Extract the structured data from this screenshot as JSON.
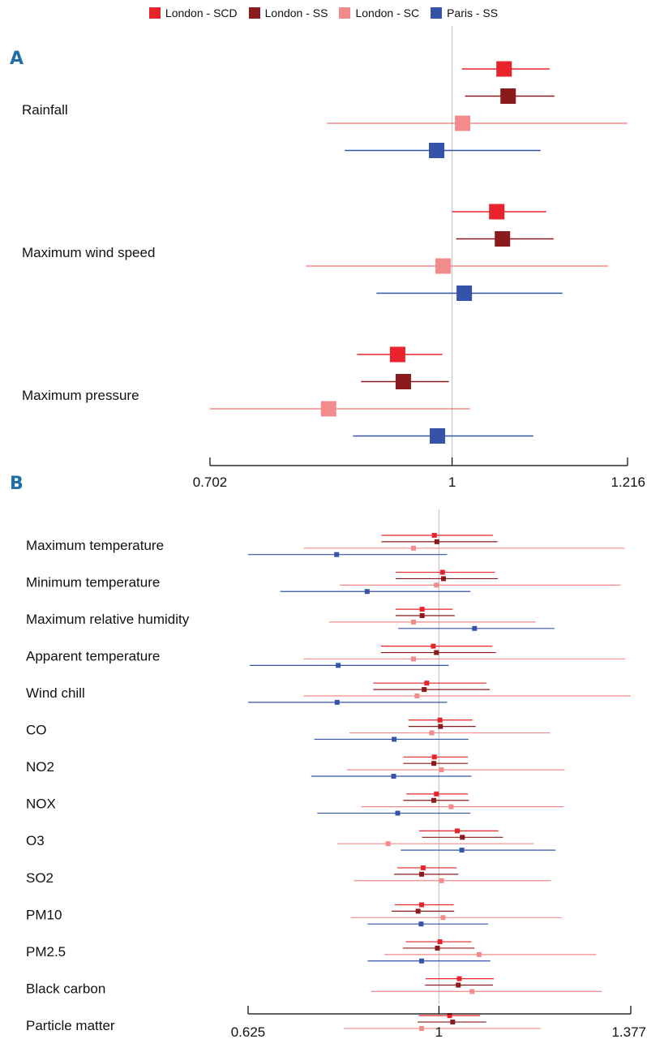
{
  "legend": [
    {
      "label": "London - SCD",
      "color": "#e8232c"
    },
    {
      "label": "London - SS",
      "color": "#8b1a1d"
    },
    {
      "label": "London - SC",
      "color": "#f28b8a"
    },
    {
      "label": "Paris - SS",
      "color": "#3553a8"
    }
  ],
  "chart_data": [
    {
      "type": "forest",
      "panel_label": "A",
      "xlim": [
        0.702,
        1.216
      ],
      "ticks": [
        0.702,
        1,
        1.216
      ],
      "tick_labels": [
        "0.702",
        "1",
        "1.216"
      ],
      "reference_line": 1,
      "categories": [
        "Rainfall",
        "Maximum wind speed",
        "Maximum pressure"
      ],
      "series": [
        {
          "name": "London - SCD",
          "color": "#e8232c",
          "values": [
            1.064,
            1.055,
            0.933
          ],
          "lower": [
            1.012,
            1.0,
            0.883
          ],
          "upper": [
            1.12,
            1.116,
            0.988
          ]
        },
        {
          "name": "London - SS",
          "color": "#8b1a1d",
          "values": [
            1.069,
            1.062,
            0.94
          ],
          "lower": [
            1.016,
            1.005,
            0.888
          ],
          "upper": [
            1.126,
            1.125,
            0.996
          ]
        },
        {
          "name": "London - SC",
          "color": "#f28b8a",
          "values": [
            1.013,
            0.989,
            0.848
          ],
          "lower": [
            0.846,
            0.82,
            0.702
          ],
          "upper": [
            1.216,
            1.192,
            1.022
          ]
        },
        {
          "name": "Paris - SS",
          "color": "#3553a8",
          "values": [
            0.981,
            1.015,
            0.982
          ],
          "lower": [
            0.868,
            0.907,
            0.878
          ],
          "upper": [
            1.109,
            1.136,
            1.1
          ]
        }
      ]
    },
    {
      "type": "forest",
      "panel_label": "B",
      "xlim": [
        0.625,
        1.377
      ],
      "ticks": [
        0.625,
        1,
        1.377
      ],
      "tick_labels": [
        "0.625",
        "1",
        "1.377"
      ],
      "reference_line": 1,
      "categories": [
        "Maximum temperature",
        "Minimum temperature",
        "Maximum relative humidity",
        "Apparent temperature",
        "Wind chill",
        "CO",
        "NO2",
        "NOX",
        "O3",
        "SO2",
        "PM10",
        "PM2.5",
        "Black carbon",
        "Particle matter"
      ],
      "series": [
        {
          "name": "London - SCD",
          "color": "#e8232c",
          "values": [
            0.991,
            1.007,
            0.967,
            0.989,
            0.976,
            1.002,
            0.991,
            0.995,
            1.036,
            0.969,
            0.966,
            1.002,
            1.04,
            1.021
          ],
          "lower": [
            0.887,
            0.915,
            0.915,
            0.886,
            0.871,
            0.94,
            0.93,
            0.936,
            0.961,
            0.918,
            0.913,
            0.935,
            0.974,
            0.96
          ],
          "upper": [
            1.106,
            1.11,
            1.027,
            1.105,
            1.093,
            1.066,
            1.057,
            1.057,
            1.117,
            1.035,
            1.029,
            1.064,
            1.108,
            1.081
          ]
        },
        {
          "name": "London - SS",
          "color": "#8b1a1d",
          "values": [
            0.996,
            1.009,
            0.967,
            0.995,
            0.971,
            1.003,
            0.99,
            0.99,
            1.046,
            0.966,
            0.959,
            0.997,
            1.038,
            1.027
          ],
          "lower": [
            0.887,
            0.915,
            0.915,
            0.886,
            0.871,
            0.94,
            0.93,
            0.93,
            0.967,
            0.912,
            0.907,
            0.929,
            0.973,
            0.958
          ],
          "upper": [
            1.115,
            1.116,
            1.031,
            1.112,
            1.1,
            1.072,
            1.057,
            1.059,
            1.126,
            1.038,
            1.03,
            1.07,
            1.106,
            1.093
          ]
        },
        {
          "name": "London - SC",
          "color": "#f28b8a",
          "values": [
            0.95,
            0.995,
            0.95,
            0.95,
            0.957,
            0.986,
            1.005,
            1.024,
            0.9,
            1.005,
            1.008,
            1.079,
            1.065,
            0.966
          ],
          "lower": [
            0.734,
            0.805,
            0.784,
            0.734,
            0.734,
            0.824,
            0.819,
            0.847,
            0.801,
            0.833,
            0.827,
            0.893,
            0.867,
            0.813
          ],
          "upper": [
            1.365,
            1.357,
            1.19,
            1.366,
            1.377,
            1.218,
            1.247,
            1.245,
            1.186,
            1.22,
            1.241,
            1.309,
            1.32,
            1.2
          ]
        },
        {
          "name": "Paris - SS",
          "color": "#3553a8",
          "values": [
            0.799,
            0.859,
            1.07,
            0.802,
            0.8,
            0.912,
            0.911,
            0.919,
            1.045,
            null,
            0.965,
            0.966,
            null,
            null
          ],
          "lower": [
            0.625,
            0.688,
            0.92,
            0.628,
            0.625,
            0.755,
            0.749,
            0.761,
            0.925,
            null,
            0.86,
            0.86,
            null,
            null
          ],
          "upper": [
            1.016,
            1.062,
            1.227,
            1.019,
            1.016,
            1.058,
            1.064,
            1.062,
            1.229,
            null,
            1.097,
            1.101,
            null,
            null
          ]
        }
      ]
    }
  ]
}
